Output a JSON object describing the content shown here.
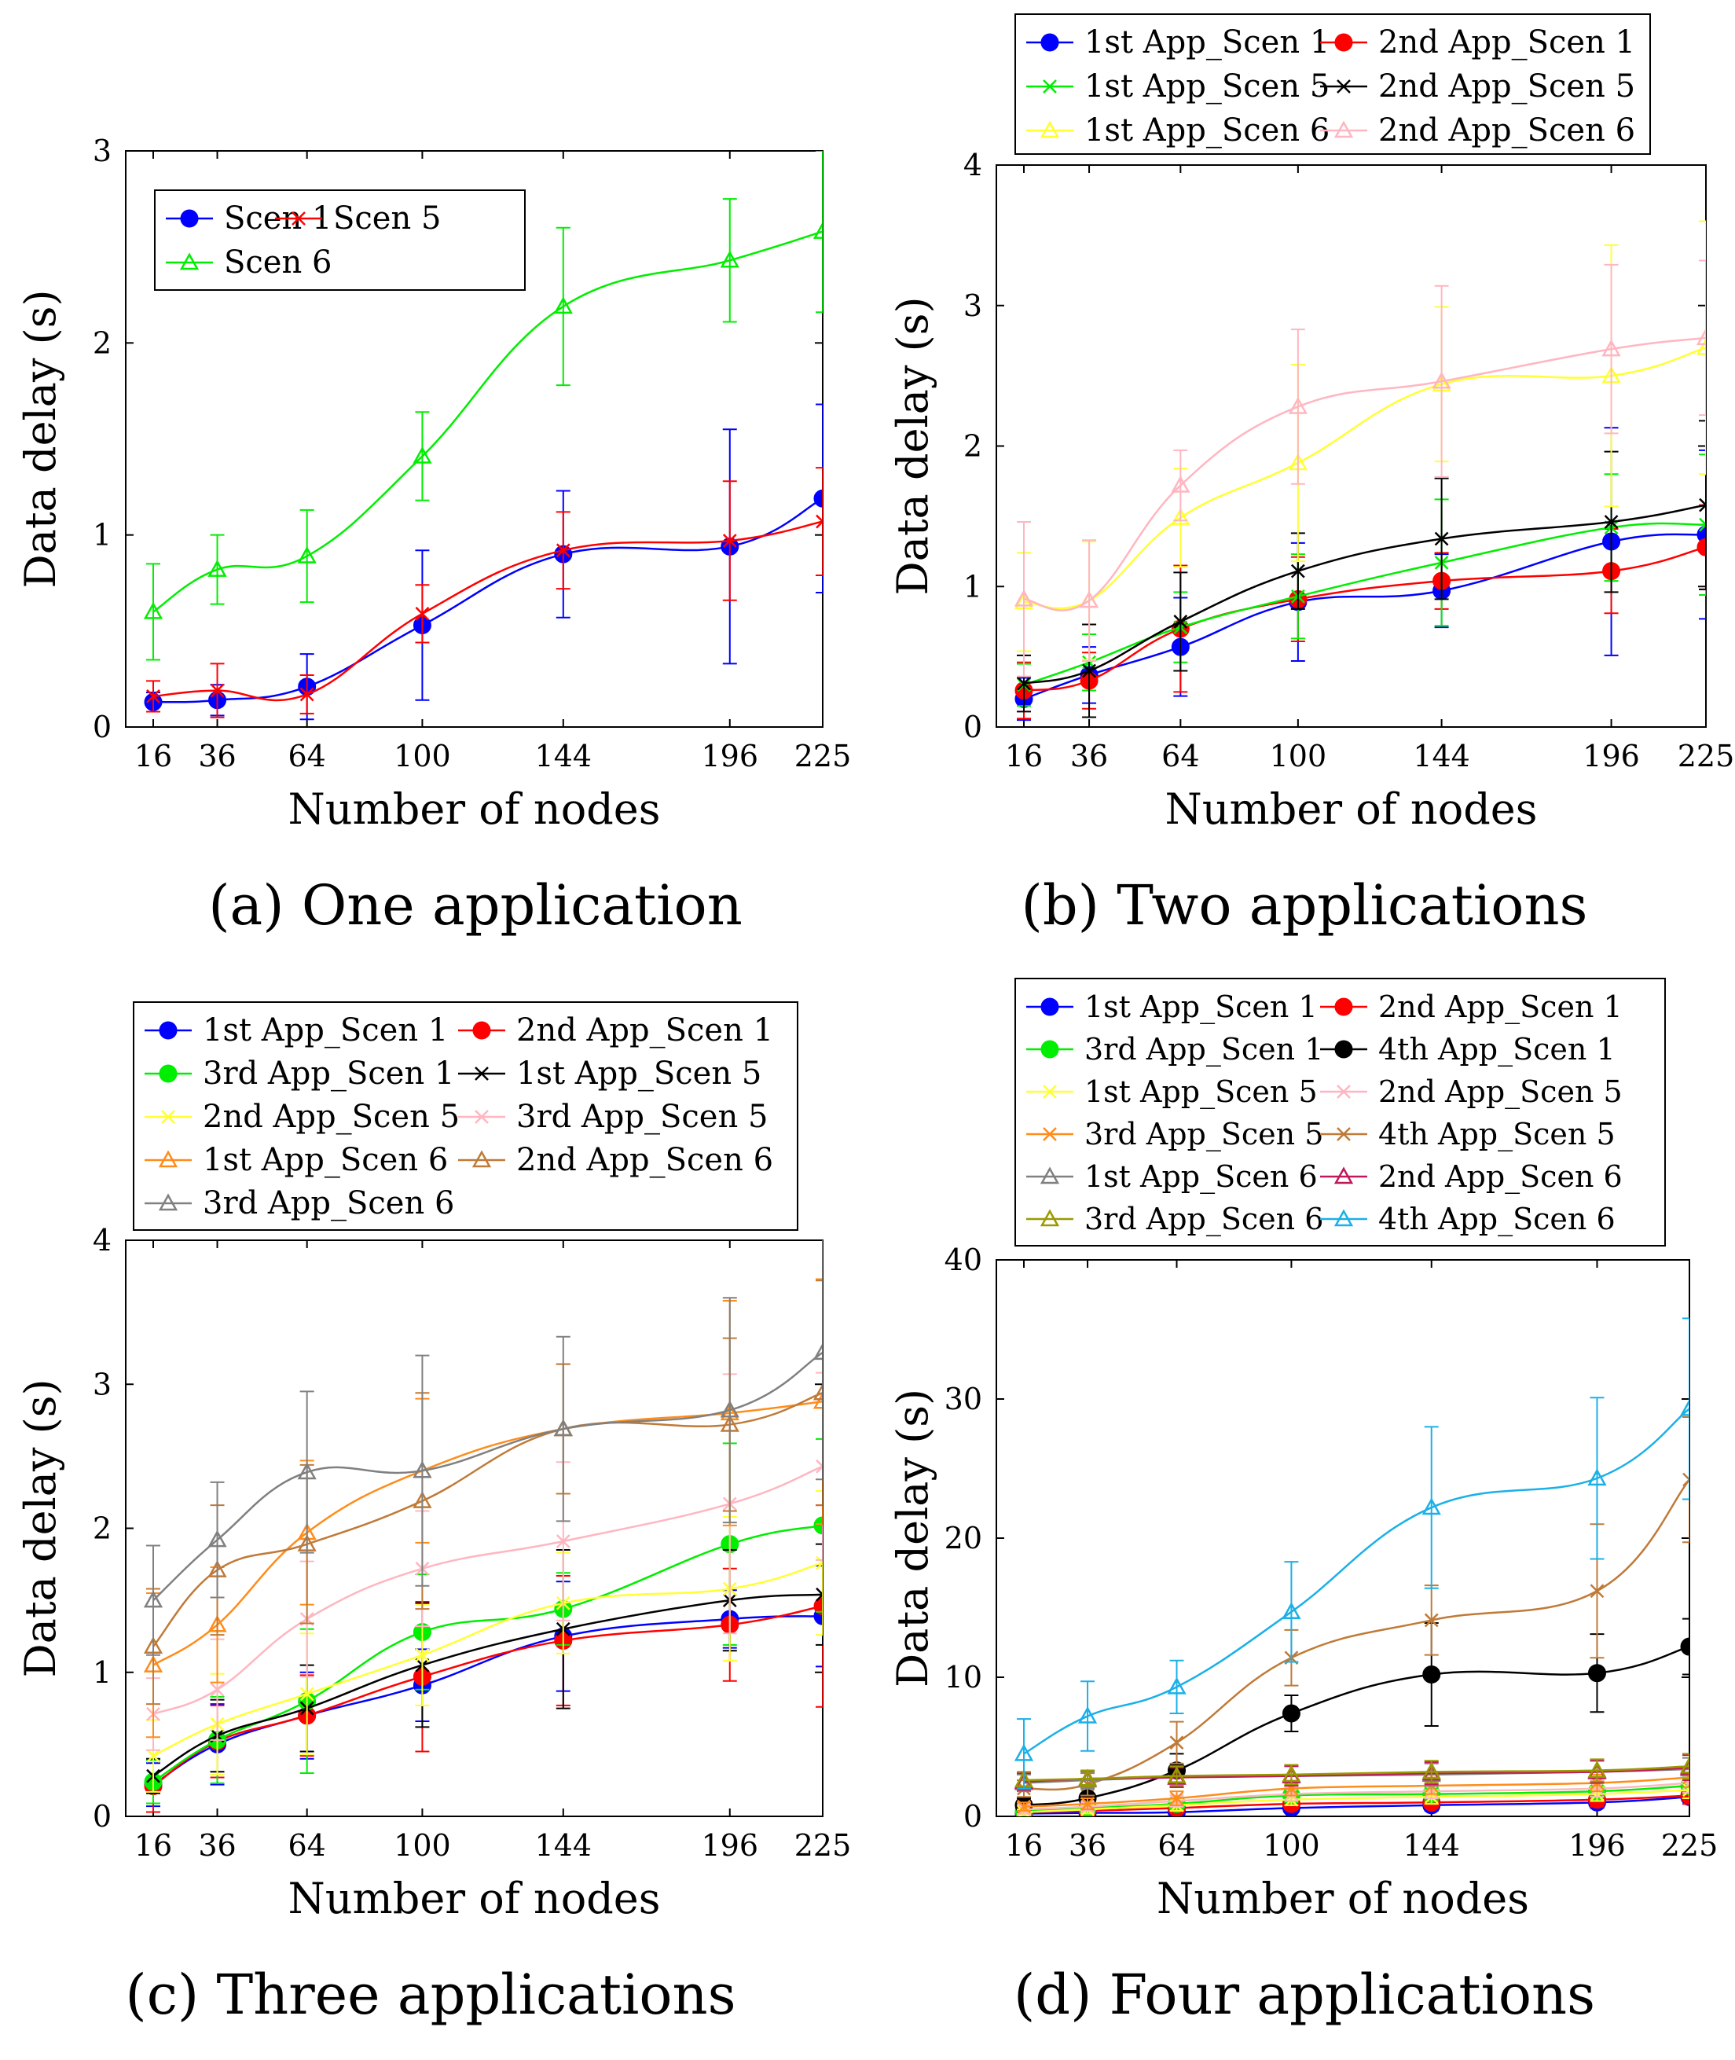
{
  "figure": {
    "colors": {
      "blue": "#0000ff",
      "red": "#ff0000",
      "green": "#00ee00",
      "black": "#000000",
      "yellow": "#ffff33",
      "pink": "#ffb6c1",
      "orange": "#ff8c1a",
      "brown": "#c07a38",
      "gray": "#808080",
      "purple": "#c0185c",
      "olive": "#999900",
      "cyan": "#1ab0e8"
    }
  },
  "chart_data": [
    {
      "type": "line",
      "caption": "(a) One application",
      "xlabel": "Number of nodes",
      "ylabel": "Data delay (s)",
      "x": [
        16,
        36,
        64,
        100,
        144,
        196,
        225
      ],
      "xticks": [
        "16",
        "36",
        "64",
        "100",
        "144",
        "196",
        "225"
      ],
      "yticks": [
        "0",
        "1",
        "2",
        "3"
      ],
      "ylim": [
        0,
        3
      ],
      "legend": {
        "position": "top-left",
        "columns": 2
      },
      "series": [
        {
          "name": "Scen 1",
          "color": "#0000ff",
          "marker": "circle",
          "values": [
            0.13,
            0.14,
            0.21,
            0.53,
            0.9,
            0.94,
            1.19
          ],
          "errors": [
            0.05,
            0.08,
            0.17,
            0.39,
            0.33,
            0.61,
            0.49
          ]
        },
        {
          "name": "Scen 5",
          "color": "#ff0000",
          "marker": "x",
          "values": [
            0.16,
            0.19,
            0.17,
            0.59,
            0.92,
            0.97,
            1.07
          ],
          "errors": [
            0.08,
            0.14,
            0.1,
            0.15,
            0.2,
            0.31,
            0.28
          ]
        },
        {
          "name": "Scen 6",
          "color": "#00ee00",
          "marker": "triangle",
          "values": [
            0.6,
            0.82,
            0.89,
            1.41,
            2.19,
            2.43,
            2.58
          ],
          "errors": [
            0.25,
            0.18,
            0.24,
            0.23,
            0.41,
            0.32,
            0.42
          ]
        }
      ]
    },
    {
      "type": "line",
      "caption": "(b) Two applications",
      "xlabel": "Number of nodes",
      "ylabel": "Data delay (s)",
      "x": [
        16,
        36,
        64,
        100,
        144,
        196,
        225
      ],
      "xticks": [
        "16",
        "36",
        "64",
        "100",
        "144",
        "196",
        "225"
      ],
      "yticks": [
        "0",
        "1",
        "2",
        "3",
        "4"
      ],
      "ylim": [
        0,
        4
      ],
      "legend": {
        "position": "top",
        "columns": 2
      },
      "series": [
        {
          "name": "1st App_Scen 1",
          "color": "#0000ff",
          "marker": "circle",
          "values": [
            0.2,
            0.37,
            0.57,
            0.89,
            0.97,
            1.32,
            1.37
          ],
          "errors": [
            0.15,
            0.2,
            0.35,
            0.42,
            0.26,
            0.81,
            0.6
          ]
        },
        {
          "name": "2nd App_Scen 1",
          "color": "#ff0000",
          "marker": "circle",
          "values": [
            0.26,
            0.33,
            0.7,
            0.91,
            1.04,
            1.11,
            1.28
          ],
          "errors": [
            0.2,
            0.2,
            0.45,
            0.3,
            0.2,
            0.3,
            0.3
          ]
        },
        {
          "name": "1st App_Scen 5",
          "color": "#00ee00",
          "marker": "x",
          "values": [
            0.3,
            0.46,
            0.71,
            0.93,
            1.17,
            1.42,
            1.44
          ],
          "errors": [
            0.15,
            0.2,
            0.25,
            0.3,
            0.45,
            0.38,
            0.5
          ]
        },
        {
          "name": "2nd App_Scen 5",
          "color": "#000000",
          "marker": "x",
          "values": [
            0.31,
            0.4,
            0.75,
            1.11,
            1.34,
            1.46,
            1.58
          ],
          "errors": [
            0.2,
            0.33,
            0.35,
            0.27,
            0.43,
            0.5,
            0.6
          ]
        },
        {
          "name": "1st App_Scen 6",
          "color": "#ffff33",
          "marker": "triangle",
          "values": [
            0.89,
            0.9,
            1.49,
            1.88,
            2.44,
            2.5,
            2.7
          ],
          "errors": [
            0.35,
            0.42,
            0.35,
            0.7,
            0.55,
            0.93,
            0.9
          ]
        },
        {
          "name": "2nd App_Scen 6",
          "color": "#ffb6c1",
          "marker": "triangle",
          "values": [
            0.91,
            0.9,
            1.72,
            2.28,
            2.46,
            2.69,
            2.77
          ],
          "errors": [
            0.55,
            0.43,
            0.25,
            0.55,
            0.68,
            0.6,
            0.55
          ]
        }
      ]
    },
    {
      "type": "line",
      "caption": "(c) Three applications",
      "xlabel": "Number of nodes",
      "ylabel": "Data delay (s)",
      "x": [
        16,
        36,
        64,
        100,
        144,
        196,
        225
      ],
      "xticks": [
        "16",
        "36",
        "64",
        "100",
        "144",
        "196",
        "225"
      ],
      "yticks": [
        "0",
        "1",
        "2",
        "3",
        "4"
      ],
      "ylim": [
        0,
        4
      ],
      "legend": {
        "position": "top",
        "columns": 2
      },
      "series": [
        {
          "name": "1st App_Scen 1",
          "color": "#0000ff",
          "marker": "circle",
          "values": [
            0.22,
            0.5,
            0.7,
            0.91,
            1.25,
            1.37,
            1.39
          ],
          "errors": [
            0.15,
            0.28,
            0.3,
            0.25,
            0.38,
            0.2,
            0.35
          ]
        },
        {
          "name": "2nd App_Scen 1",
          "color": "#ff0000",
          "marker": "circle",
          "values": [
            0.21,
            0.52,
            0.7,
            0.97,
            1.22,
            1.33,
            1.46
          ],
          "errors": [
            0.18,
            0.25,
            0.28,
            0.52,
            0.45,
            0.39,
            0.7
          ]
        },
        {
          "name": "3rd App_Scen 1",
          "color": "#00ee00",
          "marker": "circle",
          "values": [
            0.24,
            0.53,
            0.8,
            1.28,
            1.44,
            1.89,
            2.02
          ],
          "errors": [
            0.15,
            0.3,
            0.5,
            0.4,
            0.25,
            0.7,
            0.6
          ]
        },
        {
          "name": "1st App_Scen 5",
          "color": "#000000",
          "marker": "x",
          "values": [
            0.28,
            0.56,
            0.75,
            1.05,
            1.3,
            1.5,
            1.54
          ],
          "errors": [
            0.12,
            0.25,
            0.3,
            0.43,
            0.55,
            0.35,
            0.35
          ]
        },
        {
          "name": "2nd App_Scen 5",
          "color": "#ffff33",
          "marker": "x",
          "values": [
            0.42,
            0.64,
            0.85,
            1.12,
            1.48,
            1.58,
            1.76
          ],
          "errors": [
            0.25,
            0.35,
            0.42,
            0.35,
            0.35,
            0.5,
            0.5
          ]
        },
        {
          "name": "3rd App_Scen 5",
          "color": "#ffb6c1",
          "marker": "x",
          "values": [
            0.71,
            0.88,
            1.37,
            1.72,
            1.91,
            2.17,
            2.43
          ],
          "errors": [
            0.25,
            0.35,
            0.4,
            0.4,
            0.55,
            0.9,
            0.65
          ]
        },
        {
          "name": "1st App_Scen 6",
          "color": "#ff8c1a",
          "marker": "triangle",
          "values": [
            1.05,
            1.33,
            1.97,
            2.4,
            2.69,
            2.8,
            2.88
          ],
          "errors": [
            0.5,
            0.4,
            0.5,
            0.5,
            0.45,
            0.78,
            0.85
          ]
        },
        {
          "name": "2nd App_Scen 6",
          "color": "#c07a38",
          "marker": "triangle",
          "values": [
            1.18,
            1.71,
            1.89,
            2.19,
            2.69,
            2.72,
            2.94
          ],
          "errors": [
            0.4,
            0.45,
            0.55,
            0.75,
            0.45,
            0.6,
            0.78
          ]
        },
        {
          "name": "3rd App_Scen 6",
          "color": "#808080",
          "marker": "triangle",
          "values": [
            1.5,
            1.92,
            2.39,
            2.4,
            2.69,
            2.82,
            3.22
          ],
          "errors": [
            0.38,
            0.4,
            0.56,
            0.8,
            0.64,
            0.78,
            0.88
          ]
        }
      ]
    },
    {
      "type": "line",
      "caption": "(d) Four applications",
      "xlabel": "Number of nodes",
      "ylabel": "Data delay (s)",
      "x": [
        16,
        36,
        64,
        100,
        144,
        196,
        225
      ],
      "xticks": [
        "16",
        "36",
        "64",
        "100",
        "144",
        "196",
        "225"
      ],
      "yticks": [
        "0",
        "10",
        "20",
        "30",
        "40"
      ],
      "ylim": [
        0,
        40
      ],
      "legend": {
        "position": "top",
        "columns": 2
      },
      "series": [
        {
          "name": "1st App_Scen 1",
          "color": "#0000ff",
          "marker": "circle",
          "values": [
            0.2,
            0.25,
            0.3,
            0.6,
            0.8,
            1.0,
            1.4
          ],
          "errors": [
            0.2,
            0.2,
            0.3,
            0.3,
            0.4,
            0.4,
            0.5
          ]
        },
        {
          "name": "2nd App_Scen 1",
          "color": "#ff0000",
          "marker": "circle",
          "values": [
            0.3,
            0.4,
            0.6,
            0.9,
            1.0,
            1.2,
            1.5
          ],
          "errors": [
            0.2,
            0.3,
            0.3,
            0.4,
            0.4,
            0.5,
            0.6
          ]
        },
        {
          "name": "3rd App_Scen 1",
          "color": "#00ee00",
          "marker": "circle",
          "values": [
            0.4,
            0.6,
            0.9,
            1.5,
            1.6,
            1.8,
            2.2
          ],
          "errors": [
            0.3,
            0.3,
            0.4,
            0.5,
            0.5,
            0.6,
            0.6
          ]
        },
        {
          "name": "4th App_Scen 1",
          "color": "#000000",
          "marker": "circle",
          "values": [
            0.8,
            1.3,
            3.3,
            7.4,
            10.2,
            10.3,
            12.2
          ],
          "errors": [
            0.5,
            0.8,
            1.2,
            1.3,
            3.7,
            2.8,
            2.0
          ]
        },
        {
          "name": "1st App_Scen 5",
          "color": "#ffff33",
          "marker": "x",
          "values": [
            0.3,
            0.5,
            0.8,
            1.2,
            1.4,
            1.6,
            1.9
          ],
          "errors": [
            0.2,
            0.3,
            0.4,
            0.4,
            0.5,
            0.5,
            0.6
          ]
        },
        {
          "name": "2nd App_Scen 5",
          "color": "#ffb6c1",
          "marker": "x",
          "values": [
            0.5,
            0.7,
            1.1,
            1.6,
            1.8,
            2.0,
            2.4
          ],
          "errors": [
            0.3,
            0.3,
            0.4,
            0.5,
            0.5,
            0.6,
            0.7
          ]
        },
        {
          "name": "3rd App_Scen 5",
          "color": "#ff8c1a",
          "marker": "x",
          "values": [
            0.7,
            0.9,
            1.3,
            2.0,
            2.2,
            2.4,
            2.8
          ],
          "errors": [
            0.3,
            0.4,
            0.5,
            0.5,
            0.6,
            0.6,
            0.7
          ]
        },
        {
          "name": "4th App_Scen 5",
          "color": "#c07a38",
          "marker": "x",
          "values": [
            2.0,
            2.3,
            5.3,
            11.4,
            14.1,
            16.2,
            24.2
          ],
          "errors": [
            0.6,
            0.8,
            1.5,
            2.0,
            2.5,
            4.8,
            4.5
          ]
        },
        {
          "name": "1st App_Scen 6",
          "color": "#808080",
          "marker": "triangle",
          "values": [
            2.4,
            2.6,
            2.8,
            2.9,
            3.0,
            3.2,
            3.4
          ],
          "errors": [
            0.6,
            0.6,
            0.7,
            0.7,
            0.8,
            0.8,
            0.8
          ]
        },
        {
          "name": "2nd App_Scen 6",
          "color": "#c0185c",
          "marker": "triangle",
          "values": [
            2.5,
            2.7,
            2.8,
            2.9,
            3.1,
            3.2,
            3.5
          ],
          "errors": [
            0.6,
            0.6,
            0.7,
            0.7,
            0.8,
            0.8,
            0.9
          ]
        },
        {
          "name": "3rd App_Scen 6",
          "color": "#999900",
          "marker": "triangle",
          "values": [
            2.6,
            2.7,
            2.9,
            3.0,
            3.2,
            3.3,
            3.6
          ],
          "errors": [
            0.6,
            0.6,
            0.7,
            0.7,
            0.8,
            0.8,
            0.9
          ]
        },
        {
          "name": "4th App_Scen 6",
          "color": "#1ab0e8",
          "marker": "triangle",
          "values": [
            4.5,
            7.2,
            9.3,
            14.7,
            22.2,
            24.3,
            29.3
          ],
          "errors": [
            2.5,
            2.5,
            1.9,
            3.6,
            5.8,
            5.8,
            6.5
          ]
        }
      ]
    }
  ]
}
